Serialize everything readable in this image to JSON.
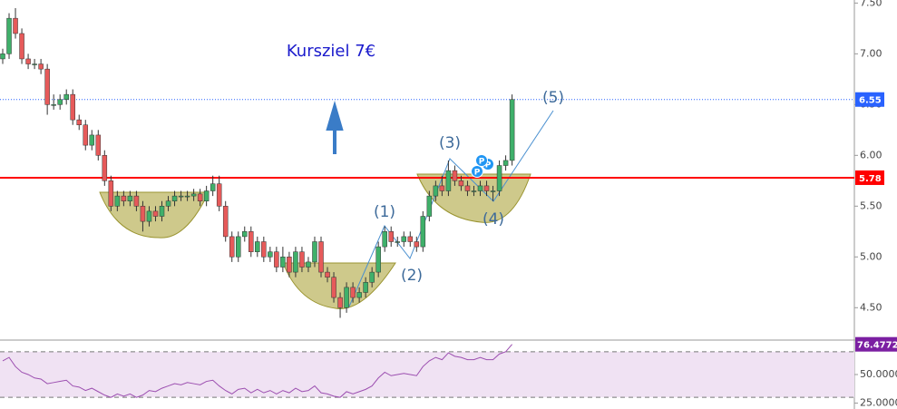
{
  "chart_data": {
    "type": "candlestick",
    "title": "Kursziel 7€",
    "title_color": "#1a1acc",
    "up_color": "#3fb06a",
    "down_color": "#e65a5a",
    "wick_color": "#333333",
    "open": [
      6.95,
      7.0,
      7.35,
      7.2,
      6.95,
      6.9,
      6.9,
      6.85,
      6.5,
      6.5,
      6.55,
      6.6,
      6.35,
      6.3,
      6.1,
      6.2,
      6.0,
      5.75,
      5.5,
      5.6,
      5.55,
      5.6,
      5.5,
      5.35,
      5.45,
      5.4,
      5.5,
      5.55,
      5.6,
      5.6,
      5.6,
      5.62,
      5.55,
      5.65,
      5.72,
      5.5,
      5.2,
      5.0,
      5.2,
      5.25,
      5.05,
      5.15,
      5.0,
      5.05,
      4.9,
      5.0,
      4.85,
      5.05,
      4.9,
      4.95,
      5.15,
      4.85,
      4.8,
      4.6,
      4.5,
      4.7,
      4.6,
      4.65,
      4.75,
      4.85,
      5.1,
      5.25,
      5.15,
      5.15,
      5.2,
      5.15,
      5.1,
      5.4,
      5.6,
      5.7,
      5.65,
      5.85,
      5.75,
      5.7,
      5.65,
      5.65,
      5.7,
      5.65,
      5.65,
      5.9,
      5.95
    ],
    "high": [
      7.05,
      7.4,
      7.45,
      7.25,
      7.0,
      6.95,
      6.95,
      6.9,
      6.6,
      6.6,
      6.65,
      6.65,
      6.4,
      6.35,
      6.25,
      6.25,
      6.05,
      5.8,
      5.65,
      5.65,
      5.65,
      5.65,
      5.55,
      5.5,
      5.5,
      5.55,
      5.6,
      5.65,
      5.65,
      5.65,
      5.67,
      5.67,
      5.7,
      5.8,
      5.8,
      5.55,
      5.25,
      5.25,
      5.3,
      5.3,
      5.2,
      5.2,
      5.1,
      5.1,
      5.1,
      5.05,
      5.1,
      5.1,
      5.0,
      5.2,
      5.2,
      4.9,
      4.85,
      4.65,
      4.75,
      4.75,
      4.7,
      4.8,
      4.9,
      5.15,
      5.3,
      5.3,
      5.2,
      5.25,
      5.25,
      5.2,
      5.45,
      5.65,
      5.75,
      5.8,
      5.95,
      5.9,
      5.8,
      5.75,
      5.7,
      5.75,
      5.75,
      5.7,
      5.95,
      6.0,
      6.6
    ],
    "low": [
      6.9,
      6.95,
      7.15,
      6.9,
      6.85,
      6.85,
      6.8,
      6.4,
      6.45,
      6.45,
      6.5,
      6.3,
      6.25,
      6.05,
      6.05,
      5.95,
      5.7,
      5.45,
      5.45,
      5.5,
      5.5,
      5.45,
      5.25,
      5.3,
      5.35,
      5.35,
      5.45,
      5.5,
      5.55,
      5.55,
      5.55,
      5.5,
      5.5,
      5.6,
      5.45,
      5.15,
      4.95,
      4.95,
      5.15,
      5.0,
      5.0,
      4.95,
      4.95,
      4.85,
      4.85,
      4.8,
      4.8,
      4.85,
      4.85,
      4.9,
      4.8,
      4.75,
      4.55,
      4.4,
      4.45,
      4.55,
      4.55,
      4.6,
      4.7,
      4.8,
      5.05,
      5.1,
      5.1,
      5.1,
      5.1,
      5.05,
      5.05,
      5.35,
      5.55,
      5.6,
      5.6,
      5.7,
      5.65,
      5.6,
      5.6,
      5.6,
      5.6,
      5.55,
      5.6,
      5.85,
      5.9
    ],
    "close": [
      7.0,
      7.35,
      7.2,
      6.95,
      6.9,
      6.9,
      6.85,
      6.5,
      6.5,
      6.55,
      6.6,
      6.35,
      6.3,
      6.1,
      6.2,
      6.0,
      5.75,
      5.5,
      5.6,
      5.55,
      5.6,
      5.5,
      5.35,
      5.45,
      5.4,
      5.5,
      5.55,
      5.6,
      5.6,
      5.6,
      5.62,
      5.55,
      5.65,
      5.72,
      5.5,
      5.2,
      5.0,
      5.2,
      5.25,
      5.05,
      5.15,
      5.0,
      5.05,
      4.9,
      5.0,
      4.85,
      5.05,
      4.9,
      4.95,
      5.15,
      4.85,
      4.8,
      4.6,
      4.5,
      4.7,
      4.6,
      4.65,
      4.75,
      4.85,
      5.1,
      5.25,
      5.15,
      5.15,
      5.2,
      5.15,
      5.1,
      5.4,
      5.6,
      5.7,
      5.65,
      5.85,
      5.75,
      5.7,
      5.65,
      5.65,
      5.7,
      5.65,
      5.65,
      5.9,
      5.95,
      6.55
    ],
    "ylim": [
      4.19,
      7.53
    ],
    "yticks": [
      {
        "value": 4.5,
        "label": "4.50"
      },
      {
        "value": 5,
        "label": "5.00"
      },
      {
        "value": 5.5,
        "label": "5.50"
      },
      {
        "value": 6,
        "label": "6.00"
      },
      {
        "value": 6.5,
        "label": "6.50"
      },
      {
        "value": 7,
        "label": "7.00"
      },
      {
        "value": 7.5,
        "label": "7.50"
      }
    ],
    "levels": [
      {
        "value": 6.55,
        "color": "#2962ff",
        "style": "dotted"
      },
      {
        "value": 5.78,
        "color": "#ff0000",
        "style": "solid"
      }
    ],
    "annotations": [
      "(1)",
      "(2)",
      "(3)",
      "(4)",
      "(5)",
      "P",
      "P",
      "P"
    ],
    "rsi": {
      "values": [
        62,
        65,
        57,
        52,
        50,
        47,
        46,
        42,
        43,
        44,
        45,
        40,
        39,
        36,
        38,
        35,
        32,
        30,
        33,
        31,
        33,
        30,
        32,
        36,
        35,
        38,
        40,
        42,
        41,
        43,
        42,
        41,
        44,
        45,
        40,
        36,
        33,
        37,
        38,
        34,
        37,
        34,
        36,
        33,
        36,
        34,
        38,
        35,
        36,
        40,
        34,
        33,
        31,
        30,
        35,
        33,
        35,
        37,
        40,
        47,
        52,
        49,
        50,
        51,
        50,
        49,
        57,
        62,
        65,
        63,
        69,
        66,
        65,
        63,
        63,
        65,
        63,
        63,
        68,
        70,
        76.4772
      ],
      "color": "#9c4fb0",
      "ylim": [
        19.8,
        79.4
      ],
      "yticks": [
        {
          "value": 25,
          "label": "25.0000"
        },
        {
          "value": 50,
          "label": "50.0000"
        }
      ],
      "levels": [
        70,
        30
      ]
    }
  }
}
